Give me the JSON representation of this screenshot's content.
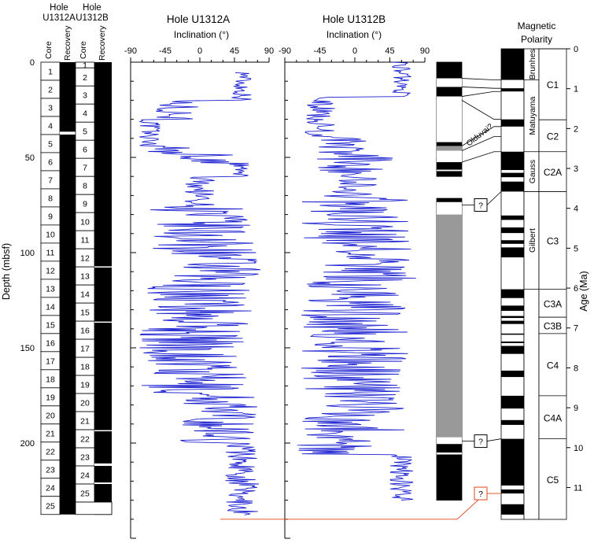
{
  "headers": {
    "holeA": [
      "Hole",
      "U1312A"
    ],
    "holeB": [
      "Hole",
      "U1312B"
    ],
    "core_label": "Core",
    "recovery_label": "Recovery",
    "magnetic_polarity": [
      "Magnetic",
      "Polarity"
    ]
  },
  "chart_data": [
    {
      "type": "table",
      "name": "Hole U1312A cores",
      "cores": [
        {
          "label": "1",
          "top": 0,
          "bottom": 9.5
        },
        {
          "label": "2",
          "top": 9.5,
          "bottom": 19
        },
        {
          "label": "3",
          "top": 19,
          "bottom": 28.5
        },
        {
          "label": "4",
          "top": 28.5,
          "bottom": 38
        },
        {
          "label": "5",
          "top": 38,
          "bottom": 47.5
        },
        {
          "label": "6",
          "top": 47.5,
          "bottom": 57
        },
        {
          "label": "7",
          "top": 57,
          "bottom": 66.5
        },
        {
          "label": "8",
          "top": 66.5,
          "bottom": 76
        },
        {
          "label": "9",
          "top": 76,
          "bottom": 85.5
        },
        {
          "label": "10",
          "top": 85.5,
          "bottom": 95
        },
        {
          "label": "11",
          "top": 95,
          "bottom": 104.5
        },
        {
          "label": "12",
          "top": 104.5,
          "bottom": 114
        },
        {
          "label": "13",
          "top": 114,
          "bottom": 123.5
        },
        {
          "label": "14",
          "top": 123.5,
          "bottom": 133
        },
        {
          "label": "15",
          "top": 133,
          "bottom": 142.5
        },
        {
          "label": "16",
          "top": 142.5,
          "bottom": 152
        },
        {
          "label": "17",
          "top": 152,
          "bottom": 161.5
        },
        {
          "label": "18",
          "top": 161.5,
          "bottom": 171
        },
        {
          "label": "19",
          "top": 171,
          "bottom": 180.5
        },
        {
          "label": "20",
          "top": 180.5,
          "bottom": 190
        },
        {
          "label": "21",
          "top": 190,
          "bottom": 199.5
        },
        {
          "label": "22",
          "top": 199.5,
          "bottom": 209
        },
        {
          "label": "23",
          "top": 209,
          "bottom": 218.5
        },
        {
          "label": "24",
          "top": 218.5,
          "bottom": 228
        },
        {
          "label": "25",
          "top": 228,
          "bottom": 237.5
        }
      ],
      "recovery_gaps": [
        [
          36.5,
          38
        ]
      ]
    },
    {
      "type": "table",
      "name": "Hole U1312B cores",
      "cores": [
        {
          "label": "1",
          "top": 0,
          "bottom": 3
        },
        {
          "label": "2",
          "top": 3,
          "bottom": 12.5
        },
        {
          "label": "3",
          "top": 12.5,
          "bottom": 22
        },
        {
          "label": "4",
          "top": 22,
          "bottom": 31.5
        },
        {
          "label": "5",
          "top": 31.5,
          "bottom": 41
        },
        {
          "label": "6",
          "top": 41,
          "bottom": 50.5
        },
        {
          "label": "7",
          "top": 50.5,
          "bottom": 60
        },
        {
          "label": "8",
          "top": 60,
          "bottom": 69.5
        },
        {
          "label": "9",
          "top": 69.5,
          "bottom": 79
        },
        {
          "label": "10",
          "top": 79,
          "bottom": 88.5
        },
        {
          "label": "11",
          "top": 88.5,
          "bottom": 98
        },
        {
          "label": "12",
          "top": 98,
          "bottom": 107.5
        },
        {
          "label": "13",
          "top": 107.5,
          "bottom": 117
        },
        {
          "label": "14",
          "top": 117,
          "bottom": 126.5
        },
        {
          "label": "15",
          "top": 126.5,
          "bottom": 136
        },
        {
          "label": "16",
          "top": 136,
          "bottom": 145.5
        },
        {
          "label": "17",
          "top": 145.5,
          "bottom": 155
        },
        {
          "label": "18",
          "top": 155,
          "bottom": 164.5
        },
        {
          "label": "19",
          "top": 164.5,
          "bottom": 174
        },
        {
          "label": "20",
          "top": 174,
          "bottom": 183.5
        },
        {
          "label": "21",
          "top": 183.5,
          "bottom": 193
        },
        {
          "label": "22",
          "top": 193,
          "bottom": 202.5
        },
        {
          "label": "23",
          "top": 202.5,
          "bottom": 212
        },
        {
          "label": "24",
          "top": 212,
          "bottom": 221.5
        },
        {
          "label": "25",
          "top": 221.5,
          "bottom": 231
        }
      ],
      "recovery_gaps": [
        [
          107.2,
          107.8
        ],
        [
          136.2,
          136.8
        ],
        [
          193.2,
          193.8
        ],
        [
          210.7,
          212
        ],
        [
          220.7,
          221.5
        ],
        [
          231,
          237.5
        ]
      ]
    },
    {
      "type": "line",
      "title": "Hole U1312A",
      "xlabel": "Inclination (°)",
      "ylabel": "Depth (mbsf)",
      "xlim": [
        -90,
        90
      ],
      "ylim": [
        0,
        250
      ],
      "xticks": [
        -90,
        -45,
        0,
        45,
        90
      ],
      "yticks": [
        0,
        50,
        100,
        150,
        200
      ],
      "depth_start": 5.5,
      "depth_end": 238,
      "segments": [
        {
          "from": 5,
          "to": 9,
          "mean": 58,
          "spread": 12
        },
        {
          "from": 9,
          "to": 20,
          "mean": 55,
          "spread": 14
        },
        {
          "from": 20,
          "to": 30,
          "mean": -30,
          "spread": 30
        },
        {
          "from": 30,
          "to": 44,
          "mean": -65,
          "spread": 15
        },
        {
          "from": 44,
          "to": 48,
          "mean": -40,
          "spread": 30
        },
        {
          "from": 48,
          "to": 53,
          "mean": 5,
          "spread": 40
        },
        {
          "from": 53,
          "to": 60,
          "mean": 50,
          "spread": 20
        },
        {
          "from": 60,
          "to": 76,
          "mean": 0,
          "spread": 20
        },
        {
          "from": 76,
          "to": 98,
          "mean": 0,
          "spread": 70
        },
        {
          "from": 98,
          "to": 112,
          "mean": 20,
          "spread": 60
        },
        {
          "from": 112,
          "to": 140,
          "mean": 0,
          "spread": 70
        },
        {
          "from": 140,
          "to": 175,
          "mean": -10,
          "spread": 70
        },
        {
          "from": 175,
          "to": 200,
          "mean": 25,
          "spread": 55
        },
        {
          "from": 200,
          "to": 240,
          "mean": 55,
          "spread": 22
        }
      ]
    },
    {
      "type": "line",
      "title": "Hole U1312B",
      "xlabel": "Inclination (°)",
      "xlim": [
        -90,
        90
      ],
      "ylim": [
        0,
        250
      ],
      "xticks": [
        -90,
        -45,
        0,
        45,
        90
      ],
      "depth_start": 0,
      "depth_end": 230,
      "segments": [
        {
          "from": 0,
          "to": 18,
          "mean": 60,
          "spread": 12
        },
        {
          "from": 18,
          "to": 40,
          "mean": -45,
          "spread": 20
        },
        {
          "from": 40,
          "to": 48,
          "mean": -20,
          "spread": 40
        },
        {
          "from": 48,
          "to": 58,
          "mean": 0,
          "spread": 50
        },
        {
          "from": 58,
          "to": 70,
          "mean": 0,
          "spread": 30
        },
        {
          "from": 70,
          "to": 95,
          "mean": 0,
          "spread": 70
        },
        {
          "from": 95,
          "to": 115,
          "mean": 15,
          "spread": 65
        },
        {
          "from": 115,
          "to": 195,
          "mean": 0,
          "spread": 70
        },
        {
          "from": 195,
          "to": 206,
          "mean": -30,
          "spread": 55
        },
        {
          "from": 206,
          "to": 230,
          "mean": 60,
          "spread": 15
        }
      ]
    },
    {
      "type": "bar",
      "name": "Polarity interpretation",
      "intervals": [
        {
          "from": 0,
          "to": 8.5,
          "state": "normal"
        },
        {
          "from": 8.5,
          "to": 13,
          "state": "reversed"
        },
        {
          "from": 13,
          "to": 18,
          "state": "normal"
        },
        {
          "from": 18,
          "to": 20,
          "state": "reversed"
        },
        {
          "from": 20,
          "to": 42,
          "state": "reversed"
        },
        {
          "from": 42,
          "to": 44,
          "state": "normal"
        },
        {
          "from": 44,
          "to": 46.5,
          "state": "uncertain"
        },
        {
          "from": 46.5,
          "to": 52.5,
          "state": "reversed"
        },
        {
          "from": 52.5,
          "to": 56.5,
          "state": "normal"
        },
        {
          "from": 56.5,
          "to": 57.2,
          "state": "reversed"
        },
        {
          "from": 57.2,
          "to": 60,
          "state": "normal"
        },
        {
          "from": 71.5,
          "to": 73.5,
          "state": "normal"
        },
        {
          "from": 73.5,
          "to": 80,
          "state": "reversed"
        },
        {
          "from": 80,
          "to": 197,
          "state": "uncertain"
        },
        {
          "from": 197,
          "to": 200.5,
          "state": "reversed"
        },
        {
          "from": 200.5,
          "to": 205,
          "state": "normal"
        },
        {
          "from": 205,
          "to": 206,
          "state": "reversed"
        },
        {
          "from": 206,
          "to": 230,
          "state": "normal"
        }
      ],
      "question_marks": [
        "?",
        "?",
        "?"
      ],
      "olduvai_label": "Olduvai?"
    },
    {
      "type": "table",
      "name": "Geomagnetic polarity timescale",
      "ylabel": "Age (Ma)",
      "ylim": [
        0,
        11.8
      ],
      "yticks": [
        0,
        1,
        2,
        3,
        4,
        5,
        6,
        7,
        8,
        9,
        10,
        11
      ],
      "normal_intervals": [
        [
          0,
          0.78
        ],
        [
          0.99,
          1.07
        ],
        [
          1.77,
          1.95
        ],
        [
          2.58,
          3.04
        ],
        [
          3.11,
          3.22
        ],
        [
          3.33,
          3.58
        ],
        [
          4.18,
          4.29
        ],
        [
          4.48,
          4.62
        ],
        [
          4.8,
          4.89
        ],
        [
          4.98,
          5.23
        ],
        [
          6.03,
          6.25
        ],
        [
          6.44,
          6.57
        ],
        [
          6.7,
          6.75
        ],
        [
          6.82,
          6.9
        ],
        [
          7.14,
          7.17
        ],
        [
          7.34,
          7.38
        ],
        [
          7.45,
          7.65
        ],
        [
          8.07,
          8.23
        ],
        [
          8.7,
          9.02
        ],
        [
          9.31,
          9.43
        ],
        [
          9.78,
          10.95
        ],
        [
          11.05,
          11.15
        ],
        [
          11.42,
          11.68
        ]
      ],
      "epochs": [
        {
          "name": "Brunhes",
          "from": 0,
          "to": 0.78
        },
        {
          "name": "Matuyama",
          "from": 0.78,
          "to": 2.58
        },
        {
          "name": "Gauss",
          "from": 2.58,
          "to": 3.58
        },
        {
          "name": "Gilbert",
          "from": 3.58,
          "to": 6.03
        }
      ],
      "chrons": [
        {
          "name": "C1",
          "from": 0,
          "to": 1.78
        },
        {
          "name": "C2",
          "from": 1.78,
          "to": 2.58
        },
        {
          "name": "C2A",
          "from": 2.58,
          "to": 3.58
        },
        {
          "name": "C3",
          "from": 3.58,
          "to": 6.03
        },
        {
          "name": "C3A",
          "from": 6.03,
          "to": 6.73
        },
        {
          "name": "C3B",
          "from": 6.73,
          "to": 7.14
        },
        {
          "name": "C4",
          "from": 7.14,
          "to": 8.7
        },
        {
          "name": "C4A",
          "from": 8.7,
          "to": 9.78
        },
        {
          "name": "C5",
          "from": 9.78,
          "to": 11.8
        }
      ],
      "tie_lines": [
        {
          "depth": 8.5,
          "age": 0.78
        },
        {
          "depth": 13,
          "age": 0.99
        },
        {
          "depth": 18,
          "age": 1.07
        },
        {
          "depth": 20,
          "age": 1.77
        },
        {
          "depth": 44,
          "age": 1.95
        },
        {
          "depth": 46.5,
          "age": 2.2
        },
        {
          "depth": 52.5,
          "age": 2.58
        }
      ],
      "question_ties": [
        {
          "depth": 75,
          "age": 3.58
        },
        {
          "depth": 199,
          "age": 9.78
        },
        {
          "depth": 240,
          "age": 11.15
        }
      ]
    }
  ]
}
